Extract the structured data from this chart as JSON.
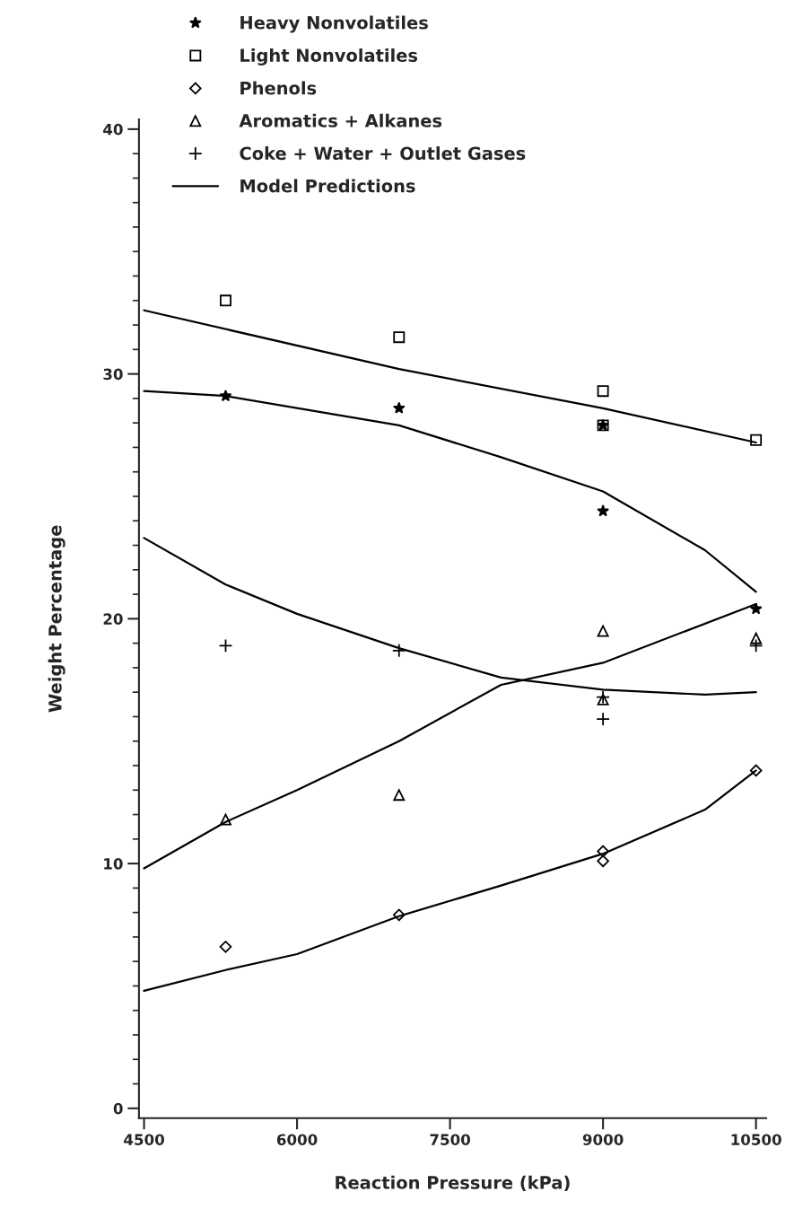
{
  "chart_data": {
    "type": "scatter",
    "xlabel": "Reaction Pressure (kPa)",
    "ylabel": "Weight Percentage",
    "xlim": [
      4450,
      10600
    ],
    "ylim": [
      -0.4,
      40.4
    ],
    "xticks": [
      4500,
      6000,
      7500,
      9000,
      10500
    ],
    "yticks": [
      0,
      10,
      20,
      30,
      40
    ],
    "grid": false,
    "legend": "top",
    "series": [
      {
        "name": "Heavy Nonvolatiles",
        "marker": "star",
        "color": "#000000",
        "x": [
          5300,
          7000,
          9000,
          9000,
          10500
        ],
        "values": [
          29.1,
          28.6,
          24.4,
          27.9,
          20.4
        ]
      },
      {
        "name": "Light Nonvolatiles",
        "marker": "square",
        "color": "#000000",
        "x": [
          5300,
          7000,
          9000,
          9000,
          10500
        ],
        "values": [
          33.0,
          31.5,
          29.3,
          27.9,
          27.3
        ]
      },
      {
        "name": "Phenols",
        "marker": "diamond",
        "color": "#000000",
        "x": [
          5300,
          7000,
          9000,
          9000,
          10500
        ],
        "values": [
          6.6,
          7.9,
          10.5,
          10.1,
          13.8
        ]
      },
      {
        "name": "Aromatics + Alkanes",
        "marker": "triangle",
        "color": "#000000",
        "x": [
          5300,
          7000,
          9000,
          9000,
          10500
        ],
        "values": [
          11.8,
          12.8,
          19.5,
          16.7,
          19.2
        ]
      },
      {
        "name": "Coke + Water + Outlet Gases",
        "marker": "cross",
        "color": "#000000",
        "x": [
          5300,
          7000,
          9000,
          9000,
          10500
        ],
        "values": [
          18.9,
          18.7,
          16.8,
          15.9,
          18.9
        ]
      },
      {
        "name": "Model Predictions",
        "type": "line",
        "marker": "none",
        "line_style": "solid",
        "color": "#000000",
        "x": [
          4500,
          7000,
          9000,
          10500
        ],
        "values": [
          32.6,
          30.2,
          28.6,
          27.2
        ]
      },
      {
        "type": "line",
        "marker": "none",
        "line_style": "solid",
        "color": "#000000",
        "x": [
          4500,
          5300,
          7000,
          8000,
          9000,
          10000,
          10500
        ],
        "values": [
          29.3,
          29.1,
          27.9,
          26.6,
          25.2,
          22.8,
          21.1
        ]
      },
      {
        "type": "line",
        "marker": "none",
        "line_style": "solid",
        "color": "#000000",
        "x": [
          4500,
          5300,
          6000,
          7000,
          8000,
          9000,
          10000,
          10500
        ],
        "values": [
          23.3,
          21.4,
          20.2,
          18.8,
          17.6,
          17.1,
          16.9,
          17.0
        ]
      },
      {
        "type": "line",
        "marker": "none",
        "line_style": "solid",
        "color": "#000000",
        "x": [
          4500,
          5300,
          6000,
          7000,
          8000,
          9000,
          10500
        ],
        "values": [
          9.8,
          11.7,
          13.0,
          15.0,
          17.3,
          18.2,
          20.6
        ]
      },
      {
        "type": "line",
        "marker": "none",
        "line_style": "solid",
        "color": "#000000",
        "x": [
          4500,
          5300,
          6000,
          7000,
          8000,
          9000,
          10000,
          10500
        ],
        "values": [
          4.8,
          5.65,
          6.3,
          7.85,
          9.1,
          10.4,
          12.2,
          13.8
        ]
      }
    ]
  }
}
